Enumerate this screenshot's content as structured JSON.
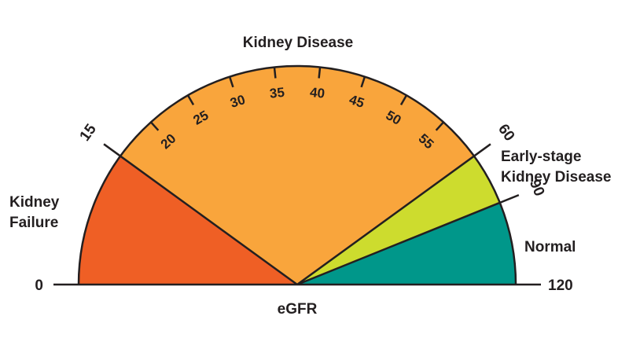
{
  "chart_data": {
    "type": "gauge",
    "title": "",
    "xlabel": "eGFR",
    "scale_min": 0,
    "scale_max": 120,
    "min_label": "0",
    "max_label": "120",
    "segments": [
      {
        "name": "Kidney Failure",
        "from": 0,
        "to": 15,
        "color": "#ef5f25",
        "label_lines": [
          "Kidney",
          "Failure"
        ]
      },
      {
        "name": "Kidney Disease",
        "from": 15,
        "to": 60,
        "color": "#f9a53c",
        "label_lines": [
          "Kidney Disease"
        ]
      },
      {
        "name": "Early-stage Kidney Disease",
        "from": 60,
        "to": 90,
        "color": "#cddc2e",
        "label_lines": [
          "Early-stage",
          "Kidney Disease"
        ]
      },
      {
        "name": "Normal",
        "from": 90,
        "to": 120,
        "color": "#00978a",
        "label_lines": [
          "Normal"
        ]
      }
    ],
    "boundary_labels": [
      "15",
      "60",
      "90"
    ],
    "inner_ticks": [
      "20",
      "25",
      "30",
      "35",
      "40",
      "45",
      "50",
      "55"
    ]
  }
}
